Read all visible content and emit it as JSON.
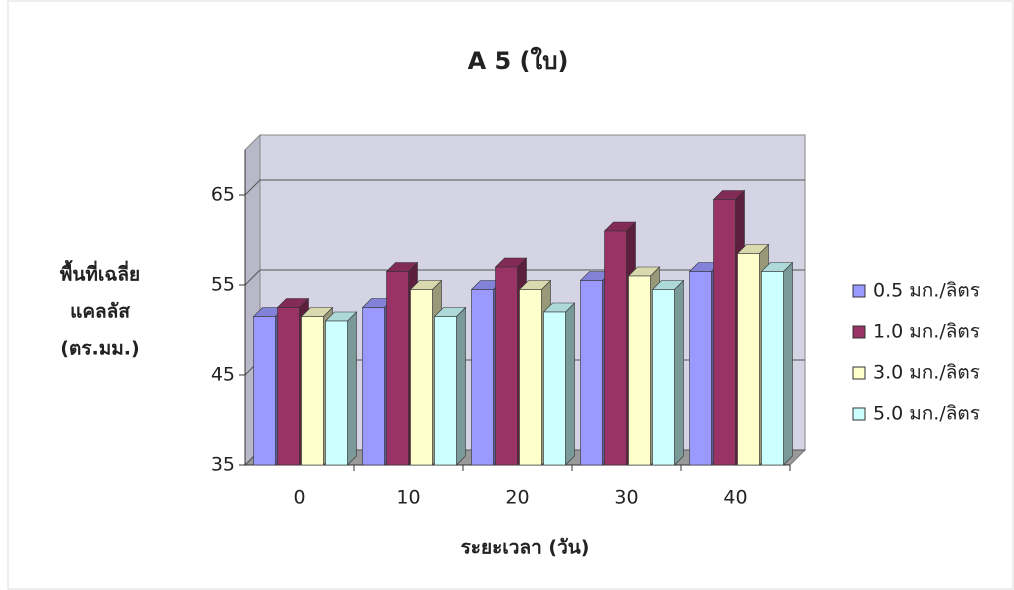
{
  "chart_data": {
    "type": "bar3d",
    "title": "A 5 (ใบ)",
    "y_label_lines": [
      "พื้นที่เฉลี่ย",
      "แคลลัส",
      "(ตร.มม.)"
    ],
    "x_label": "ระยะเวลา (วัน)",
    "categories": [
      "0",
      "10",
      "20",
      "30",
      "40"
    ],
    "series": [
      {
        "name": "0.5 มก./ลิตร",
        "color": "#9999ff",
        "values": [
          51.5,
          52.5,
          54.5,
          55.5,
          56.5
        ]
      },
      {
        "name": "1.0 มก./ลิตร",
        "color": "#993366",
        "values": [
          52.5,
          56.5,
          57,
          61,
          64.5
        ]
      },
      {
        "name": "3.0 มก./ลิตร",
        "color": "#ffffcc",
        "values": [
          51.5,
          54.5,
          54.5,
          56,
          58.5
        ]
      },
      {
        "name": "5.0 มก./ลิตร",
        "color": "#ccffff",
        "values": [
          51,
          51.5,
          52,
          54.5,
          56.5
        ]
      }
    ],
    "ylim": [
      35,
      70
    ],
    "yticks": [
      35,
      45,
      55,
      65
    ],
    "grid": true
  }
}
